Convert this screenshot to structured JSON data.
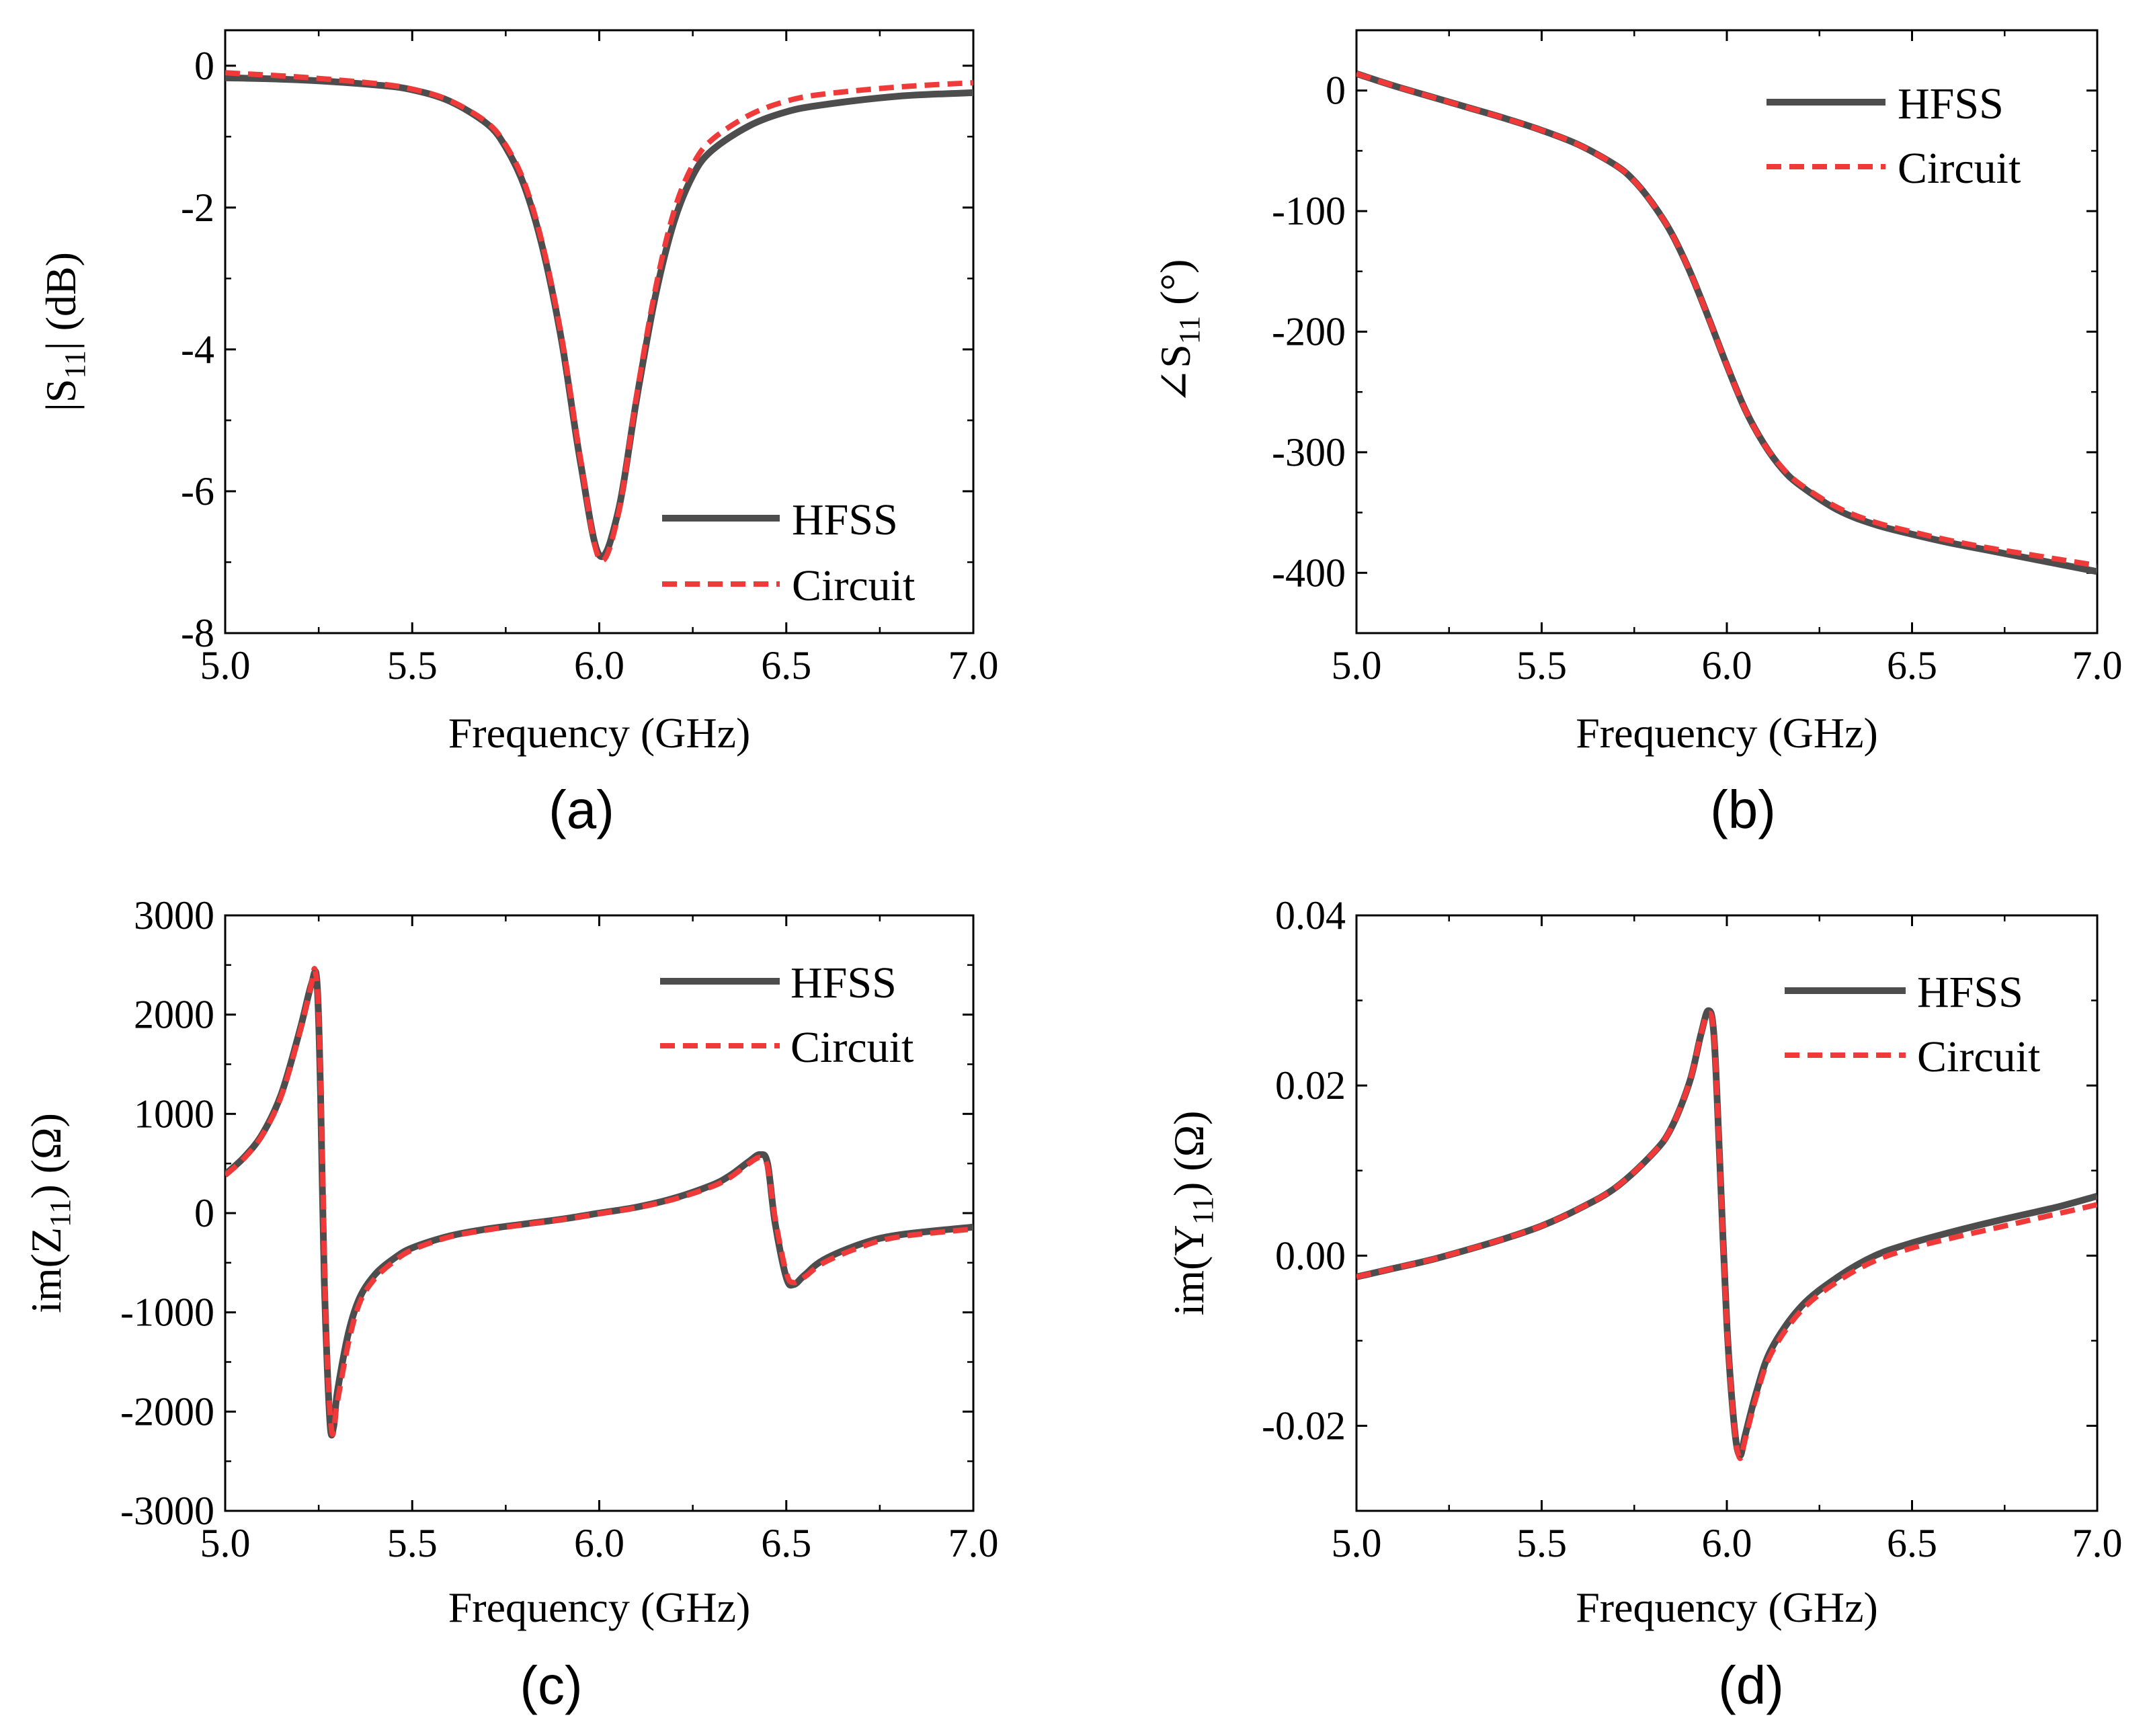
{
  "legend": {
    "hfss": "HFSS",
    "circuit": "Circuit"
  },
  "colors": {
    "hfss": "#4d4d4d",
    "circuit": "#f03a3a"
  },
  "chart_data": [
    {
      "id": "a",
      "type": "line",
      "panel_label": "(a)",
      "xlabel": "Frequency (GHz)",
      "ylabel": "|S11| (dB)",
      "ylabel_parts": [
        "|S",
        "11",
        "| (dB)"
      ],
      "xlim": [
        5.0,
        7.0
      ],
      "ylim": [
        -8,
        0.5
      ],
      "xticks": [
        5.0,
        5.5,
        6.0,
        6.5,
        7.0
      ],
      "xtick_labels": [
        "5.0",
        "5.5",
        "6.0",
        "6.5",
        "7.0"
      ],
      "yticks": [
        0,
        -2,
        -4,
        -6,
        -8
      ],
      "ytick_labels": [
        "0",
        "-2",
        "-4",
        "-6",
        "-8"
      ],
      "legend_position": "bottom-right",
      "series": [
        {
          "name": "HFSS",
          "style": "solid",
          "x": [
            5.0,
            5.2,
            5.4,
            5.5,
            5.6,
            5.7,
            5.75,
            5.8,
            5.85,
            5.9,
            5.95,
            6.0,
            6.05,
            6.1,
            6.15,
            6.2,
            6.25,
            6.3,
            6.4,
            6.5,
            6.6,
            6.8,
            7.0
          ],
          "y": [
            -0.17,
            -0.2,
            -0.27,
            -0.34,
            -0.5,
            -0.82,
            -1.15,
            -1.7,
            -2.6,
            -3.9,
            -5.6,
            -6.9,
            -6.3,
            -4.7,
            -3.25,
            -2.2,
            -1.55,
            -1.2,
            -0.85,
            -0.65,
            -0.55,
            -0.43,
            -0.38
          ]
        },
        {
          "name": "Circuit",
          "style": "dashed",
          "x": [
            5.0,
            5.2,
            5.4,
            5.5,
            5.6,
            5.7,
            5.75,
            5.8,
            5.85,
            5.9,
            5.95,
            6.0,
            6.05,
            6.1,
            6.15,
            6.2,
            6.25,
            6.3,
            6.4,
            6.5,
            6.6,
            6.8,
            7.0
          ],
          "y": [
            -0.1,
            -0.16,
            -0.25,
            -0.33,
            -0.49,
            -0.8,
            -1.12,
            -1.65,
            -2.55,
            -3.85,
            -5.55,
            -6.95,
            -6.35,
            -4.65,
            -3.15,
            -2.05,
            -1.4,
            -1.05,
            -0.7,
            -0.5,
            -0.4,
            -0.3,
            -0.24
          ]
        }
      ]
    },
    {
      "id": "b",
      "type": "line",
      "panel_label": "(b)",
      "xlabel": "Frequency (GHz)",
      "ylabel": "∠S11 (°)",
      "ylabel_parts": [
        "∠S",
        "11",
        " (°)"
      ],
      "xlim": [
        5.0,
        7.0
      ],
      "ylim": [
        -450,
        50
      ],
      "xticks": [
        5.0,
        5.5,
        6.0,
        6.5,
        7.0
      ],
      "xtick_labels": [
        "5.0",
        "5.5",
        "6.0",
        "6.5",
        "7.0"
      ],
      "yticks": [
        0,
        -100,
        -200,
        -300,
        -400
      ],
      "ytick_labels": [
        "0",
        "-100",
        "-200",
        "-300",
        "-400"
      ],
      "legend_position": "top-right",
      "series": [
        {
          "name": "HFSS",
          "style": "solid",
          "x": [
            5.0,
            5.1,
            5.2,
            5.3,
            5.4,
            5.5,
            5.6,
            5.7,
            5.75,
            5.8,
            5.85,
            5.9,
            5.95,
            6.0,
            6.05,
            6.1,
            6.15,
            6.2,
            6.3,
            6.4,
            6.5,
            6.6,
            6.7,
            6.8,
            6.9,
            7.0
          ],
          "y": [
            14,
            4,
            -5,
            -14,
            -23,
            -33,
            -45,
            -62,
            -75,
            -94,
            -118,
            -150,
            -188,
            -228,
            -265,
            -293,
            -314,
            -328,
            -348,
            -360,
            -368,
            -375,
            -381,
            -387,
            -393,
            -399
          ]
        },
        {
          "name": "Circuit",
          "style": "dashed",
          "x": [
            5.0,
            5.1,
            5.2,
            5.3,
            5.4,
            5.5,
            5.6,
            5.7,
            5.75,
            5.8,
            5.85,
            5.9,
            5.95,
            6.0,
            6.05,
            6.1,
            6.15,
            6.2,
            6.3,
            6.4,
            6.5,
            6.6,
            6.7,
            6.8,
            6.9,
            7.0
          ],
          "y": [
            14,
            4,
            -5,
            -14,
            -23,
            -33,
            -45,
            -62,
            -75,
            -94,
            -118,
            -150,
            -188,
            -228,
            -265,
            -293,
            -313,
            -327,
            -346,
            -358,
            -366,
            -373,
            -379,
            -384,
            -389,
            -394
          ]
        }
      ]
    },
    {
      "id": "c",
      "type": "line",
      "panel_label": "(c)",
      "xlabel": "Frequency (GHz)",
      "ylabel": "im(Z11) (Ω)",
      "ylabel_parts": [
        "im(Z",
        "11",
        ") (Ω)"
      ],
      "xlim": [
        5.0,
        7.0
      ],
      "ylim": [
        -3000,
        3000
      ],
      "xticks": [
        5.0,
        5.5,
        6.0,
        6.5,
        7.0
      ],
      "xtick_labels": [
        "5.0",
        "5.5",
        "6.0",
        "6.5",
        "7.0"
      ],
      "yticks": [
        3000,
        2000,
        1000,
        0,
        -1000,
        -2000,
        -3000
      ],
      "ytick_labels": [
        "3000",
        "2000",
        "1000",
        "0",
        "-1000",
        "-2000",
        "-3000"
      ],
      "legend_position": "top-right",
      "series": [
        {
          "name": "HFSS",
          "style": "solid",
          "x": [
            5.0,
            5.05,
            5.1,
            5.15,
            5.2,
            5.23,
            5.245,
            5.255,
            5.265,
            5.28,
            5.29,
            5.3,
            5.33,
            5.36,
            5.4,
            5.45,
            5.5,
            5.6,
            5.7,
            5.8,
            5.9,
            6.0,
            6.1,
            6.2,
            6.3,
            6.35,
            6.4,
            6.43,
            6.45,
            6.47,
            6.5,
            6.52,
            6.55,
            6.6,
            6.7,
            6.8,
            7.0
          ],
          "y": [
            390,
            560,
            800,
            1200,
            1850,
            2300,
            2350,
            1200,
            -700,
            -2100,
            -2150,
            -1800,
            -1200,
            -850,
            -620,
            -460,
            -350,
            -230,
            -160,
            -110,
            -60,
            0,
            60,
            150,
            280,
            380,
            520,
            590,
            500,
            -100,
            -650,
            -720,
            -620,
            -470,
            -310,
            -220,
            -140
          ]
        },
        {
          "name": "Circuit",
          "style": "dashed",
          "x": [
            5.0,
            5.05,
            5.1,
            5.15,
            5.2,
            5.23,
            5.24,
            5.25,
            5.26,
            5.27,
            5.285,
            5.3,
            5.33,
            5.36,
            5.4,
            5.45,
            5.5,
            5.6,
            5.7,
            5.8,
            5.9,
            6.0,
            6.1,
            6.2,
            6.3,
            6.35,
            6.4,
            6.43,
            6.45,
            6.47,
            6.5,
            6.52,
            6.55,
            6.6,
            6.7,
            6.8,
            7.0
          ],
          "y": [
            380,
            550,
            790,
            1180,
            1830,
            2300,
            2450,
            2000,
            500,
            -1200,
            -2200,
            -1900,
            -1300,
            -900,
            -660,
            -490,
            -370,
            -240,
            -170,
            -115,
            -65,
            -5,
            55,
            140,
            265,
            360,
            500,
            560,
            470,
            -50,
            -600,
            -700,
            -640,
            -500,
            -340,
            -240,
            -160
          ]
        }
      ]
    },
    {
      "id": "d",
      "type": "line",
      "panel_label": "(d)",
      "xlabel": "Frequency (GHz)",
      "ylabel": "im(Y11) (Ω)",
      "ylabel_parts": [
        "im(Y",
        "11",
        ") (Ω)"
      ],
      "xlim": [
        5.0,
        7.0
      ],
      "ylim": [
        -0.03,
        0.04
      ],
      "xticks": [
        5.0,
        5.5,
        6.0,
        6.5,
        7.0
      ],
      "xtick_labels": [
        "5.0",
        "5.5",
        "6.0",
        "6.5",
        "7.0"
      ],
      "yticks": [
        0.04,
        0.02,
        0.0,
        -0.02
      ],
      "ytick_labels": [
        "0.04",
        "0.02",
        "0.00",
        "-0.02"
      ],
      "legend_position": "top-right",
      "series": [
        {
          "name": "HFSS",
          "style": "solid",
          "x": [
            5.0,
            5.1,
            5.2,
            5.3,
            5.4,
            5.5,
            5.6,
            5.7,
            5.8,
            5.85,
            5.9,
            5.93,
            5.95,
            5.965,
            5.98,
            6.0,
            6.02,
            6.035,
            6.05,
            6.08,
            6.12,
            6.2,
            6.3,
            6.4,
            6.5,
            6.6,
            6.7,
            6.8,
            6.9,
            7.0
          ],
          "y": [
            -0.0025,
            -0.0015,
            -0.0005,
            0.0007,
            0.002,
            0.0035,
            0.0055,
            0.008,
            0.012,
            0.015,
            0.0205,
            0.026,
            0.0288,
            0.026,
            0.012,
            -0.008,
            -0.02,
            -0.0235,
            -0.021,
            -0.016,
            -0.011,
            -0.006,
            -0.0025,
            0.0,
            0.0015,
            0.0027,
            0.0038,
            0.0048,
            0.0058,
            0.007
          ]
        },
        {
          "name": "Circuit",
          "style": "dashed",
          "x": [
            5.0,
            5.1,
            5.2,
            5.3,
            5.4,
            5.5,
            5.6,
            5.7,
            5.8,
            5.85,
            5.9,
            5.93,
            5.95,
            5.965,
            5.98,
            6.0,
            6.02,
            6.035,
            6.05,
            6.08,
            6.12,
            6.2,
            6.3,
            6.4,
            6.5,
            6.6,
            6.7,
            6.8,
            6.9,
            7.0
          ],
          "y": [
            -0.0025,
            -0.0015,
            -0.0005,
            0.0007,
            0.002,
            0.0035,
            0.0055,
            0.008,
            0.012,
            0.015,
            0.0205,
            0.026,
            0.0285,
            0.026,
            0.012,
            -0.008,
            -0.02,
            -0.0238,
            -0.0215,
            -0.0165,
            -0.0115,
            -0.0065,
            -0.003,
            -0.0006,
            0.0009,
            0.002,
            0.003,
            0.004,
            0.005,
            0.006
          ]
        }
      ]
    }
  ]
}
